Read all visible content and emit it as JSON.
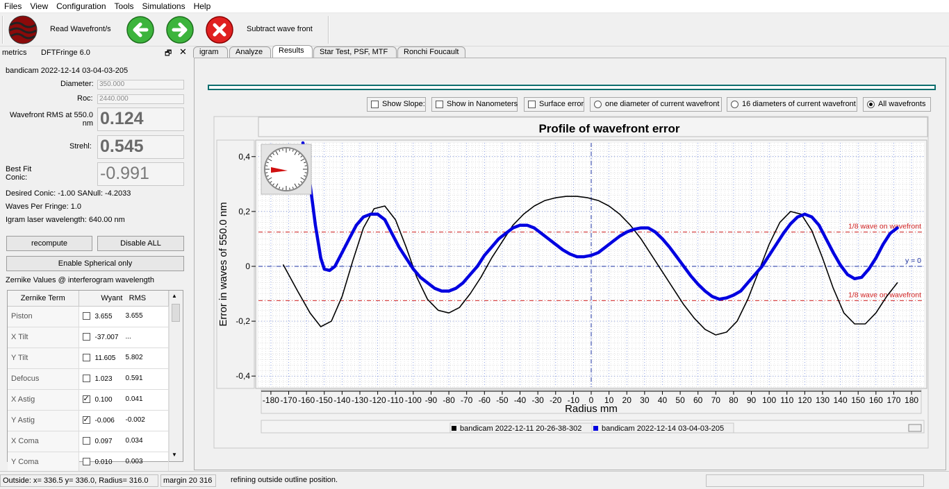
{
  "menu": [
    "Files",
    "View",
    "Configuration",
    "Tools",
    "Simulations",
    "Help"
  ],
  "toolbar": {
    "read_label": "Read Wavefront/s",
    "subtract_label": "Subtract wave front"
  },
  "dock": {
    "title1": "metrics",
    "title2": "DFTFringe 6.0"
  },
  "metrics": {
    "file_name": "bandicam 2022-12-14 03-04-03-205",
    "diameter_label": "Diameter:",
    "diameter_value": "350.000",
    "roc_label": "Roc:",
    "roc_value": "2440.000",
    "rms_label": "Wavefront RMS at 550.0 nm",
    "rms_value": "0.124",
    "strehl_label": "Strehl:",
    "strehl_value": "0.545",
    "conic_label": "Best Fit Conic:",
    "conic_value": "-0.991",
    "desired_conic": "Desired Conic:  -1.00 SANull: -4.2033",
    "waves_per_fringe": "Waves Per Fringe: 1.0",
    "laser": "Igram laser wavelength: 640.00 nm",
    "recompute": "recompute",
    "disable_all": "Disable ALL",
    "enable_spherical": "Enable Spherical only",
    "zernike_heading": "Zernike Values @ interferogram wavelength"
  },
  "zernike": {
    "headers": [
      "Zernike Term",
      "Wyant",
      "RMS"
    ],
    "rows": [
      {
        "term": "Piston",
        "checked": false,
        "wyant": "3.655",
        "rms": "3.655"
      },
      {
        "term": "X Tilt",
        "checked": false,
        "wyant": "-37.007",
        "rms": "..."
      },
      {
        "term": "Y Tilt",
        "checked": false,
        "wyant": "11.605",
        "rms": "5.802"
      },
      {
        "term": "Defocus",
        "checked": false,
        "wyant": "1.023",
        "rms": "0.591"
      },
      {
        "term": "X Astig",
        "checked": true,
        "wyant": "0.100",
        "rms": "0.041"
      },
      {
        "term": "Y Astig",
        "checked": true,
        "wyant": "-0.006",
        "rms": "-0.002"
      },
      {
        "term": "X Coma",
        "checked": false,
        "wyant": "0.097",
        "rms": "0.034"
      },
      {
        "term": "Y Coma",
        "checked": false,
        "wyant": "0.010",
        "rms": "0.003"
      }
    ]
  },
  "tabs": [
    "igram",
    "Analyze",
    "Results",
    "Star Test, PSF, MTF",
    "Ronchi  Foucault"
  ],
  "options": {
    "show_slope": "Show Slope:",
    "show_nm": "Show in Nanometers",
    "surface_error": "Surface error",
    "one_diameter": "one diameter of current wavefront",
    "sixteen_diameters": "16 diameters of current wavefront",
    "all_wavefronts": "All wavefronts"
  },
  "colors": {
    "series_black": "#000000",
    "series_blue": "#0000e0",
    "ref_line": "#d02020",
    "grid": "#3355cc"
  },
  "chart_data": {
    "type": "line",
    "title": "Profile of wavefront error",
    "xlabel": "Radius mm",
    "ylabel": "Error in waves of  550.0 nm",
    "xlim": [
      -187,
      187
    ],
    "ylim": [
      -0.44,
      0.45
    ],
    "x_ticks": [
      -180,
      -170,
      -160,
      -150,
      -140,
      -130,
      -120,
      -110,
      -100,
      -90,
      -80,
      -70,
      -60,
      -50,
      -40,
      -30,
      -20,
      -10,
      0,
      10,
      20,
      30,
      40,
      50,
      60,
      70,
      80,
      90,
      100,
      110,
      120,
      130,
      140,
      150,
      160,
      170,
      180
    ],
    "y_ticks": [
      {
        "v": 0.4,
        "label": "0,4"
      },
      {
        "v": 0.2,
        "label": "0,2"
      },
      {
        "v": 0,
        "label": "0"
      },
      {
        "v": -0.2,
        "label": "-0,2"
      },
      {
        "v": -0.4,
        "label": "-0,4"
      }
    ],
    "ref_lines": [
      {
        "y": 0.125,
        "label": "1/8 wave on wavefront"
      },
      {
        "y": -0.125,
        "label": "1/8 wave on wavefront"
      },
      {
        "y": 0,
        "label": "y = 0"
      }
    ],
    "series": [
      {
        "name": "bandicam 2022-12-11 20-26-38-302",
        "x": [
          -173,
          -165,
          -158,
          -152,
          -146,
          -140,
          -134,
          -128,
          -122,
          -116,
          -110,
          -104,
          -98,
          -92,
          -86,
          -80,
          -74,
          -68,
          -62,
          -56,
          -50,
          -44,
          -38,
          -32,
          -26,
          -20,
          -14,
          -8,
          -2,
          4,
          10,
          16,
          22,
          28,
          34,
          40,
          46,
          52,
          58,
          64,
          70,
          76,
          82,
          88,
          94,
          100,
          106,
          112,
          118,
          124,
          130,
          136,
          142,
          148,
          154,
          160,
          166,
          172
        ],
        "y": [
          0.005,
          -0.09,
          -0.17,
          -0.22,
          -0.2,
          -0.11,
          0.02,
          0.14,
          0.21,
          0.22,
          0.17,
          0.07,
          -0.04,
          -0.12,
          -0.16,
          -0.17,
          -0.15,
          -0.1,
          -0.04,
          0.03,
          0.09,
          0.15,
          0.19,
          0.22,
          0.24,
          0.25,
          0.255,
          0.255,
          0.25,
          0.24,
          0.22,
          0.19,
          0.15,
          0.1,
          0.04,
          -0.02,
          -0.08,
          -0.14,
          -0.19,
          -0.23,
          -0.25,
          -0.24,
          -0.2,
          -0.12,
          -0.02,
          0.08,
          0.16,
          0.2,
          0.19,
          0.13,
          0.03,
          -0.08,
          -0.17,
          -0.21,
          -0.21,
          -0.17,
          -0.11,
          -0.06
        ]
      },
      {
        "name": "bandicam 2022-12-14 03-04-03-205",
        "x": [
          -162,
          -158,
          -155,
          -152,
          -150,
          -147,
          -144,
          -140,
          -136,
          -132,
          -128,
          -124,
          -120,
          -116,
          -112,
          -108,
          -104,
          -100,
          -96,
          -92,
          -88,
          -84,
          -80,
          -76,
          -72,
          -68,
          -64,
          -60,
          -56,
          -52,
          -48,
          -44,
          -40,
          -36,
          -32,
          -28,
          -24,
          -20,
          -16,
          -12,
          -8,
          -4,
          0,
          4,
          8,
          12,
          16,
          20,
          24,
          28,
          32,
          36,
          40,
          44,
          48,
          52,
          56,
          60,
          64,
          68,
          72,
          76,
          80,
          84,
          88,
          92,
          96,
          100,
          104,
          108,
          112,
          116,
          120,
          124,
          128,
          132,
          136,
          140,
          144,
          148,
          152,
          156,
          160,
          164,
          168,
          172
        ],
        "y": [
          0.46,
          0.3,
          0.15,
          0.03,
          -0.01,
          -0.015,
          0.0,
          0.05,
          0.1,
          0.15,
          0.18,
          0.19,
          0.19,
          0.17,
          0.12,
          0.07,
          0.03,
          -0.01,
          -0.04,
          -0.06,
          -0.08,
          -0.09,
          -0.09,
          -0.08,
          -0.06,
          -0.03,
          0.0,
          0.04,
          0.07,
          0.1,
          0.12,
          0.14,
          0.15,
          0.15,
          0.14,
          0.12,
          0.1,
          0.08,
          0.06,
          0.045,
          0.035,
          0.035,
          0.04,
          0.05,
          0.07,
          0.09,
          0.11,
          0.125,
          0.135,
          0.14,
          0.14,
          0.125,
          0.1,
          0.07,
          0.035,
          0.0,
          -0.035,
          -0.065,
          -0.09,
          -0.11,
          -0.12,
          -0.115,
          -0.105,
          -0.09,
          -0.06,
          -0.03,
          0.0,
          0.04,
          0.08,
          0.12,
          0.155,
          0.18,
          0.19,
          0.18,
          0.15,
          0.1,
          0.05,
          0.005,
          -0.03,
          -0.045,
          -0.04,
          -0.01,
          0.03,
          0.08,
          0.12,
          0.14
        ]
      }
    ]
  },
  "legend": [
    {
      "label": "bandicam 2022-12-11 20-26-38-302",
      "color": "#000000"
    },
    {
      "label": "bandicam 2022-12-14 03-04-03-205",
      "color": "#0000e0"
    }
  ],
  "status": {
    "coords": "Outside: x= 336.5 y= 336.0, Radius=  316.0",
    "margin": "margin 20 316",
    "message": "refining outside outline position."
  }
}
